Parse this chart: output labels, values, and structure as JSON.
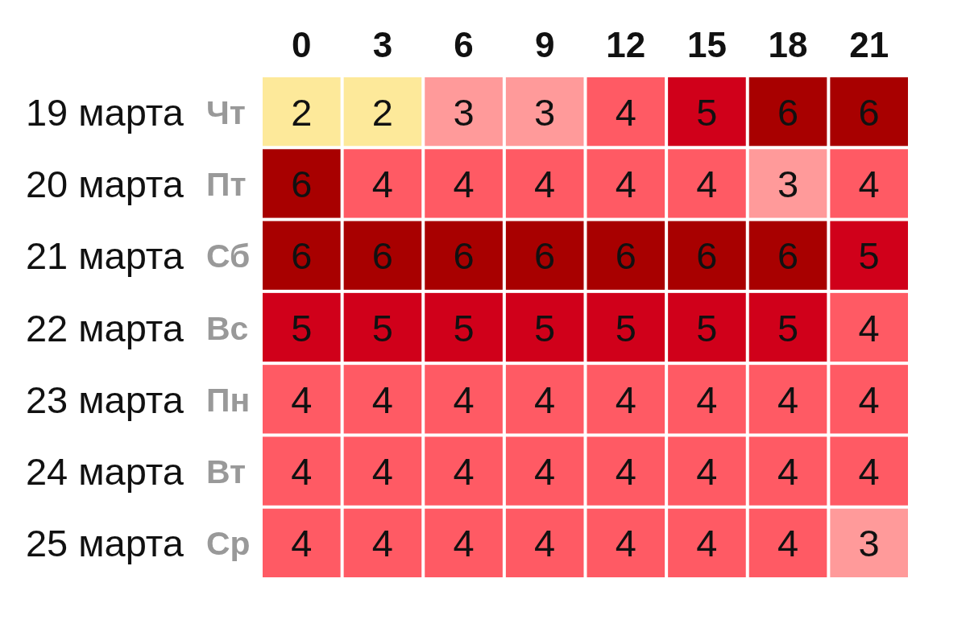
{
  "chart_data": {
    "type": "heatmap",
    "categories": [
      "0",
      "3",
      "6",
      "9",
      "12",
      "15",
      "18",
      "21"
    ],
    "y_categories": [
      "19 марта",
      "20 марта",
      "21 марта",
      "22 марта",
      "23 марта",
      "24 марта",
      "25 марта"
    ],
    "y2_categories": [
      "Чт",
      "Пт",
      "Сб",
      "Вс",
      "Пн",
      "Вт",
      "Ср"
    ],
    "cells": [
      [
        2,
        2,
        3,
        3,
        4,
        5,
        6,
        6
      ],
      [
        6,
        4,
        4,
        4,
        4,
        4,
        3,
        4
      ],
      [
        6,
        6,
        6,
        6,
        6,
        6,
        6,
        5
      ],
      [
        5,
        5,
        5,
        5,
        5,
        5,
        5,
        4
      ],
      [
        4,
        4,
        4,
        4,
        4,
        4,
        4,
        4
      ],
      [
        4,
        4,
        4,
        4,
        4,
        4,
        4,
        4
      ],
      [
        4,
        4,
        4,
        4,
        4,
        4,
        4,
        3
      ]
    ],
    "colors": [
      [
        "#fde99a",
        "#fde99a",
        "#ff9a9a",
        "#ff9a9a",
        "#ff5a64",
        "#d0001a",
        "#a80000",
        "#a80000"
      ],
      [
        "#a80000",
        "#ff5a64",
        "#ff5a64",
        "#ff5a64",
        "#ff5a64",
        "#ff5a64",
        "#ff9a9a",
        "#ff5a64"
      ],
      [
        "#a80000",
        "#a80000",
        "#a80000",
        "#a80000",
        "#a80000",
        "#a80000",
        "#a80000",
        "#d0001a"
      ],
      [
        "#d0001a",
        "#d0001a",
        "#d0001a",
        "#d0001a",
        "#d0001a",
        "#d0001a",
        "#d0001a",
        "#ff5a64"
      ],
      [
        "#ff5a64",
        "#ff5a64",
        "#ff5a64",
        "#ff5a64",
        "#ff5a64",
        "#ff5a64",
        "#ff5a64",
        "#ff5a64"
      ],
      [
        "#ff5a64",
        "#ff5a64",
        "#ff5a64",
        "#ff5a64",
        "#ff5a64",
        "#ff5a64",
        "#ff5a64",
        "#ff5a64"
      ],
      [
        "#ff5a64",
        "#ff5a64",
        "#ff5a64",
        "#ff5a64",
        "#ff5a64",
        "#ff5a64",
        "#ff5a64",
        "#ff9a9a"
      ]
    ],
    "data_labels": true
  }
}
